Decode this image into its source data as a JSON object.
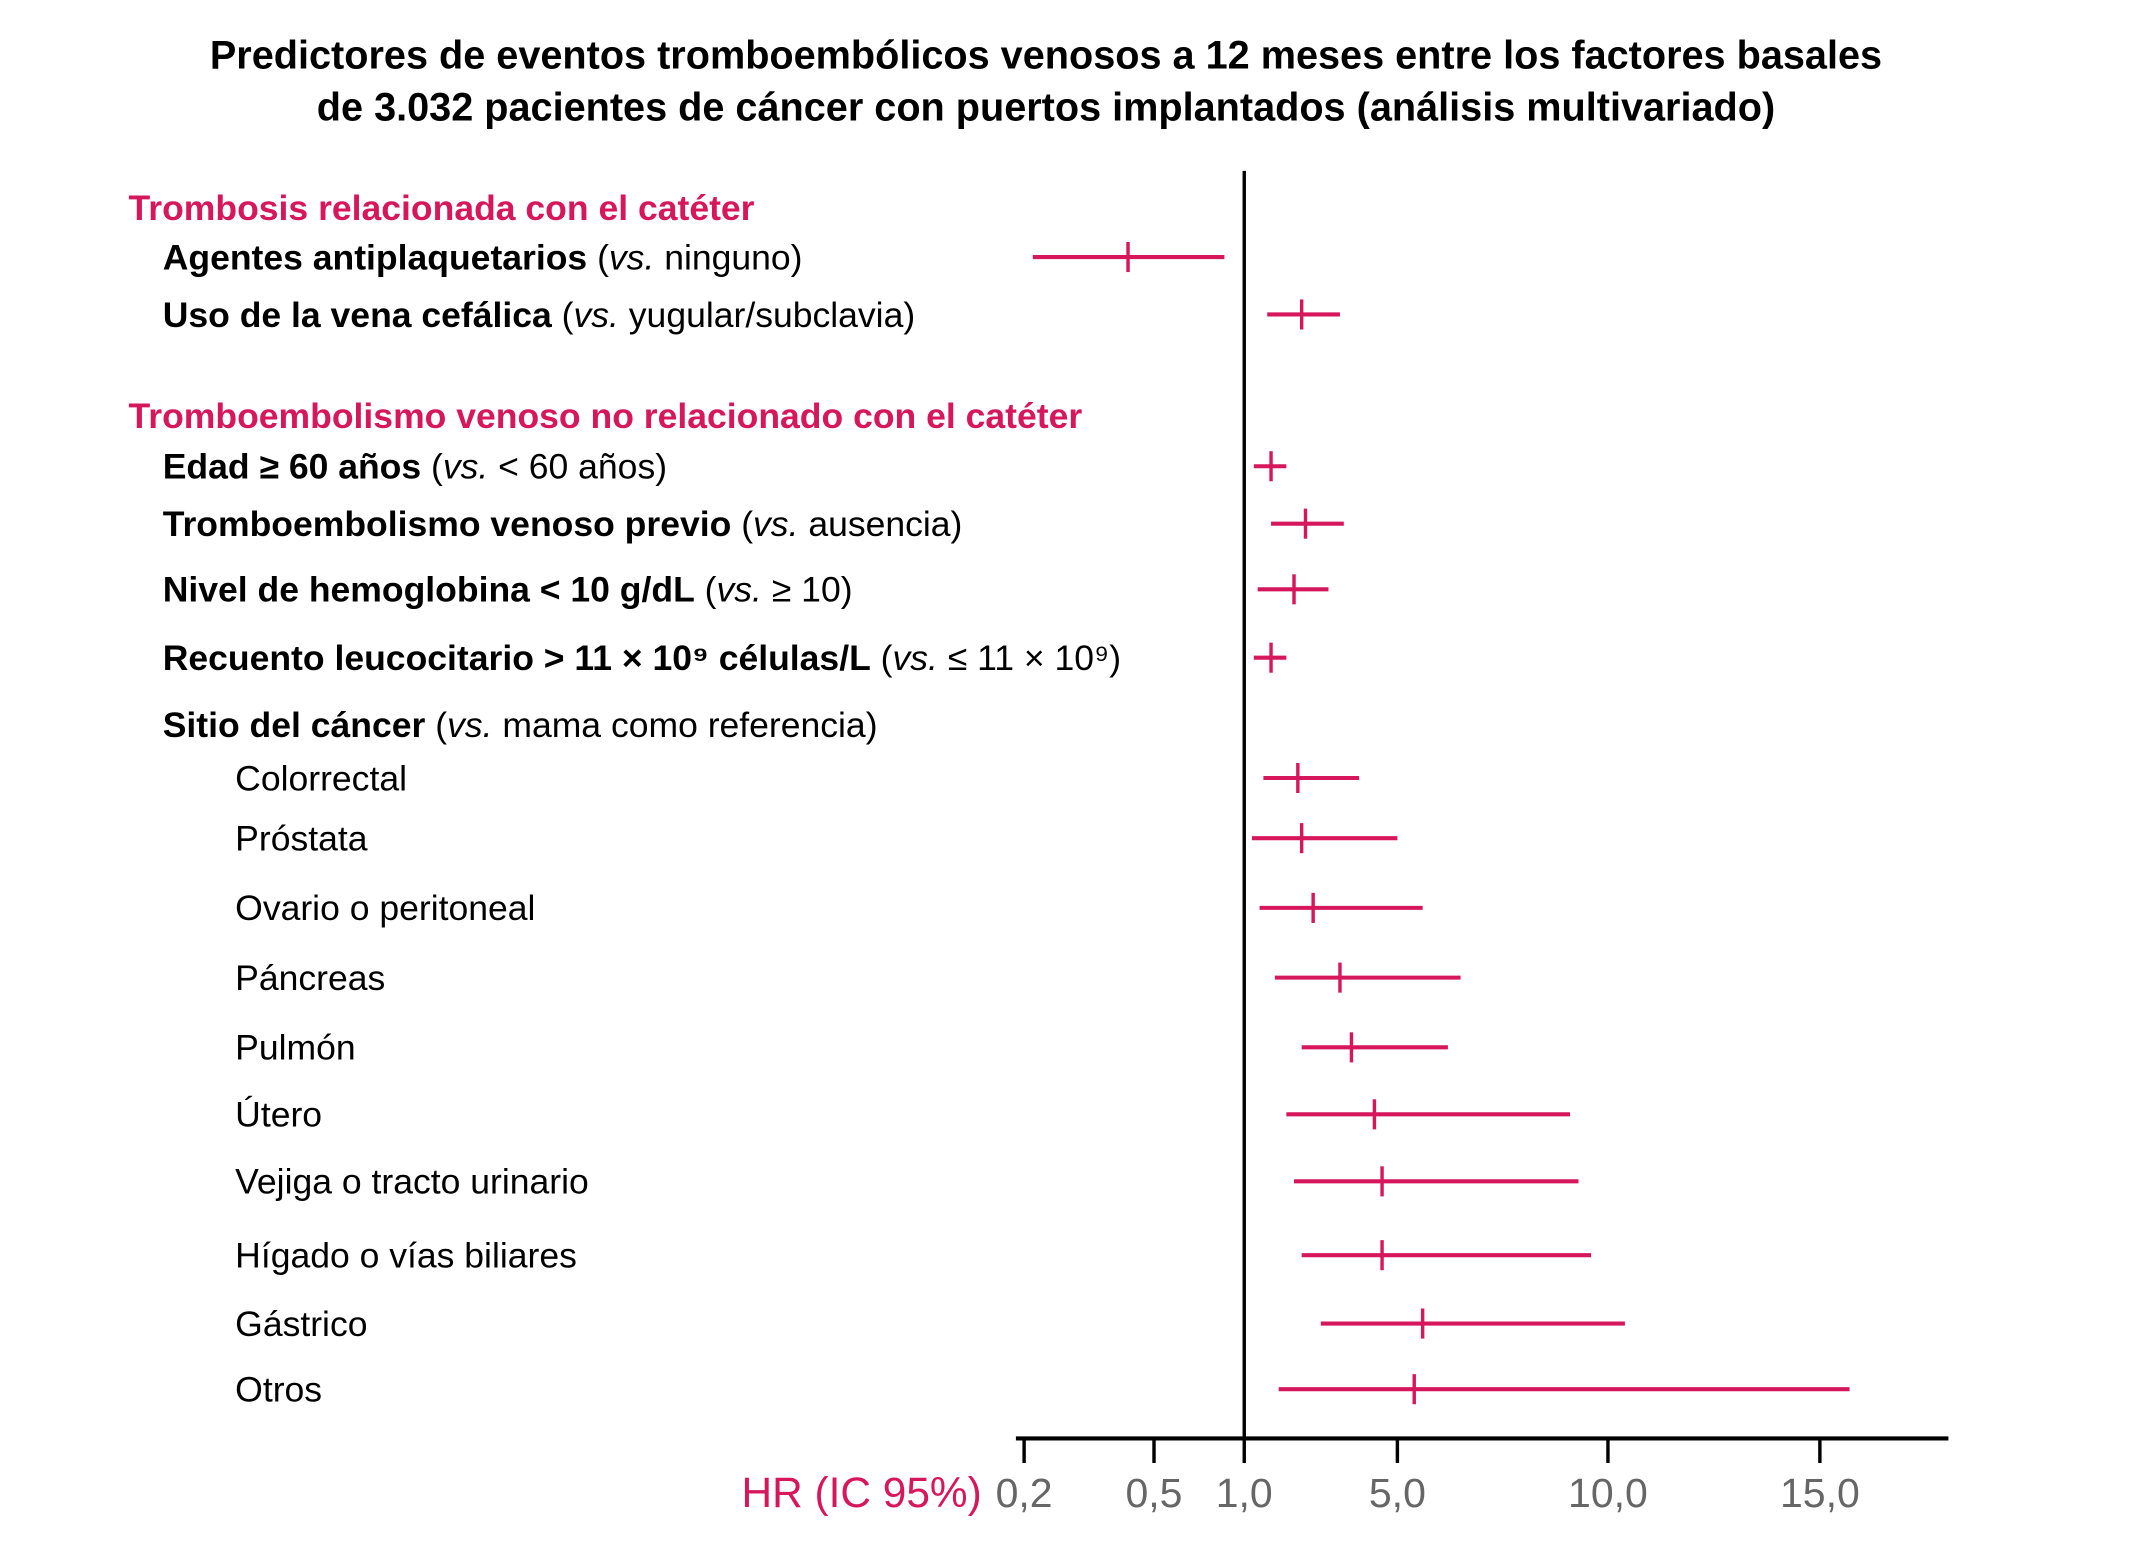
{
  "chart_data": {
    "type": "forest",
    "title": "Predictores de eventos tromboembólicos venosos a 12 meses entre los factores basales de 3.032 pacientes de cáncer con puertos implantados (análisis multivariado)",
    "title_lines": [
      "Predictores de eventos tromboembólicos venosos a 12 meses entre los factores basales",
      "de 3.032 pacientes de cáncer con puertos implantados (análisis multivariado)"
    ],
    "xlabel": "HR (IC 95%)",
    "reference_line": 1.0,
    "x_ticks": [
      0.2,
      0.5,
      1.0,
      5.0,
      10.0,
      15.0
    ],
    "x_tick_labels": [
      "0,2",
      "0,5",
      "1,0",
      "5,0",
      "10,0",
      "15,0"
    ],
    "xlim": [
      0.2,
      18
    ],
    "marker_color": "#d6175c",
    "rows": [
      {
        "kind": "header",
        "label": "Trombosis relacionada con el catéter"
      },
      {
        "kind": "item",
        "bold": "Agentes antiplaquetarios",
        "vs": "vs.",
        "rest": "ninguno)",
        "hr": 0.44,
        "lo": 0.22,
        "hi": 0.89
      },
      {
        "kind": "item",
        "bold": "Uso de la vena cefálica",
        "vs": "vs.",
        "rest": "yugular/subclavia)",
        "hr": 2.5,
        "lo": 1.6,
        "hi": 3.5
      },
      {
        "kind": "header",
        "label": "Tromboembolismo venoso no relacionado con el catéter"
      },
      {
        "kind": "item",
        "bold": "Edad ≥ 60 años",
        "vs": "vs.",
        "rest": "< 60 años)",
        "hr": 1.7,
        "lo": 1.25,
        "hi": 2.1
      },
      {
        "kind": "item",
        "bold": "Tromboembolismo venoso previo",
        "vs": "vs.",
        "rest": "ausencia)",
        "hr": 2.6,
        "lo": 1.7,
        "hi": 3.6
      },
      {
        "kind": "item",
        "bold": "Nivel de hemoglobina < 10 g/dL",
        "vs": "vs.",
        "rest": "≥ 10)",
        "hr": 2.3,
        "lo": 1.35,
        "hi": 3.2
      },
      {
        "kind": "item",
        "bold": "Recuento leucocitario > 11 × 10⁹ células/L",
        "vs": "vs.",
        "rest": "≤ 11 × 10⁹)",
        "hr": 1.7,
        "lo": 1.25,
        "hi": 2.1
      },
      {
        "kind": "item",
        "bold": "Sitio del cáncer",
        "vs": "vs.",
        "rest": "mama como referencia)"
      },
      {
        "kind": "sub",
        "label": "Colorrectal",
        "hr": 2.4,
        "lo": 1.5,
        "hi": 4.0
      },
      {
        "kind": "sub",
        "label": "Próstata",
        "hr": 2.5,
        "lo": 1.2,
        "hi": 5.0
      },
      {
        "kind": "sub",
        "label": "Ovario o peritoneal",
        "hr": 2.8,
        "lo": 1.4,
        "hi": 5.6
      },
      {
        "kind": "sub",
        "label": "Páncreas",
        "hr": 3.5,
        "lo": 1.8,
        "hi": 6.5
      },
      {
        "kind": "sub",
        "label": "Pulmón",
        "hr": 3.8,
        "lo": 2.5,
        "hi": 6.2
      },
      {
        "kind": "sub",
        "label": "Útero",
        "hr": 4.4,
        "lo": 2.1,
        "hi": 9.1
      },
      {
        "kind": "sub",
        "label": "Vejiga o tracto urinario",
        "hr": 4.6,
        "lo": 2.3,
        "hi": 9.3
      },
      {
        "kind": "sub",
        "label": "Hígado o vías biliares",
        "hr": 4.6,
        "lo": 2.5,
        "hi": 9.6
      },
      {
        "kind": "sub",
        "label": "Gástrico",
        "hr": 5.6,
        "lo": 3.0,
        "hi": 10.4
      },
      {
        "kind": "sub",
        "label": "Otros",
        "hr": 5.4,
        "lo": 1.9,
        "hi": 15.7
      }
    ]
  }
}
